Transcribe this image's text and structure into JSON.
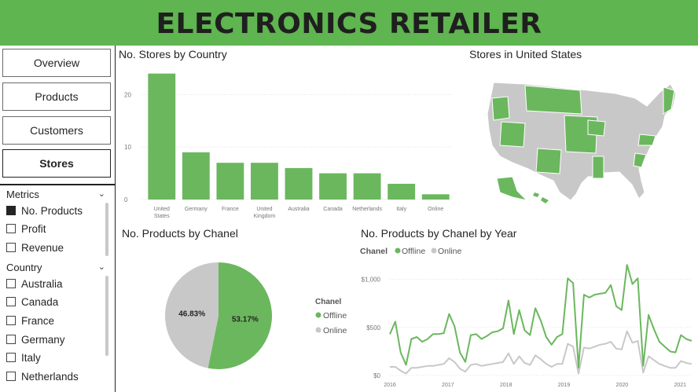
{
  "header": {
    "title": "ELECTRONICS RETAILER"
  },
  "nav": {
    "items": [
      "Overview",
      "Products",
      "Customers",
      "Stores"
    ],
    "active": "Stores"
  },
  "slicers": {
    "metrics": {
      "title": "Metrics",
      "items": [
        {
          "label": "No. Products",
          "checked": true
        },
        {
          "label": "Profit",
          "checked": false
        },
        {
          "label": "Revenue",
          "checked": false
        }
      ]
    },
    "country": {
      "title": "Country",
      "items": [
        {
          "label": "Australia",
          "checked": false
        },
        {
          "label": "Canada",
          "checked": false
        },
        {
          "label": "France",
          "checked": false
        },
        {
          "label": "Germany",
          "checked": false
        },
        {
          "label": "Italy",
          "checked": false
        },
        {
          "label": "Netherlands",
          "checked": false
        }
      ]
    }
  },
  "colors": {
    "green": "#6bb75e",
    "gray": "#c8c8c8",
    "header": "#5fb54f"
  },
  "map": {
    "title": "Stores in United States"
  },
  "chart_data": [
    {
      "type": "bar",
      "title": "No. Stores by Country",
      "categories": [
        "United States",
        "Germany",
        "France",
        "United Kingdom",
        "Australia",
        "Canada",
        "Netherlands",
        "Italy",
        "Online"
      ],
      "values": [
        24,
        9,
        7,
        7,
        6,
        5,
        5,
        3,
        1
      ],
      "ylim": [
        0,
        25
      ],
      "yticks": [
        "0",
        "10",
        "20"
      ],
      "grid": true
    },
    {
      "type": "pie",
      "title": "No. Products by Chanel",
      "legend_title": "Chanel",
      "slices": [
        {
          "name": "Offline",
          "value": 53.17,
          "label": "53.17%"
        },
        {
          "name": "Online",
          "value": 46.83,
          "label": "46.83%"
        }
      ],
      "legend_position": "right"
    },
    {
      "type": "line",
      "title": "No. Products by Chanel by Year",
      "legend_title": "Chanel",
      "legend_position": "top-left",
      "x_start": 2016.0,
      "x_end": 2021.2,
      "xticks": [
        "2016",
        "2017",
        "2018",
        "2019",
        "2020",
        "2021"
      ],
      "yticks": [
        "$0",
        "$500",
        "$1,000"
      ],
      "ylim": [
        0,
        1200
      ],
      "grid": true,
      "series": [
        {
          "name": "Offline",
          "values": [
            430,
            560,
            240,
            110,
            380,
            400,
            350,
            380,
            430,
            430,
            440,
            640,
            510,
            240,
            140,
            420,
            430,
            380,
            410,
            450,
            460,
            490,
            780,
            430,
            680,
            470,
            420,
            700,
            570,
            400,
            320,
            400,
            430,
            1010,
            960,
            80,
            840,
            810,
            840,
            850,
            860,
            940,
            720,
            680,
            1150,
            950,
            1010,
            100,
            630,
            480,
            350,
            300,
            250,
            240,
            420,
            380,
            360
          ]
        },
        {
          "name": "Online",
          "values": [
            90,
            90,
            50,
            20,
            80,
            80,
            90,
            100,
            100,
            110,
            120,
            180,
            140,
            70,
            40,
            110,
            120,
            100,
            110,
            120,
            130,
            140,
            230,
            120,
            200,
            130,
            110,
            210,
            170,
            120,
            90,
            120,
            120,
            330,
            300,
            20,
            290,
            280,
            300,
            320,
            330,
            350,
            280,
            270,
            460,
            340,
            360,
            30,
            200,
            160,
            120,
            100,
            80,
            80,
            150,
            130,
            120
          ]
        }
      ]
    }
  ]
}
